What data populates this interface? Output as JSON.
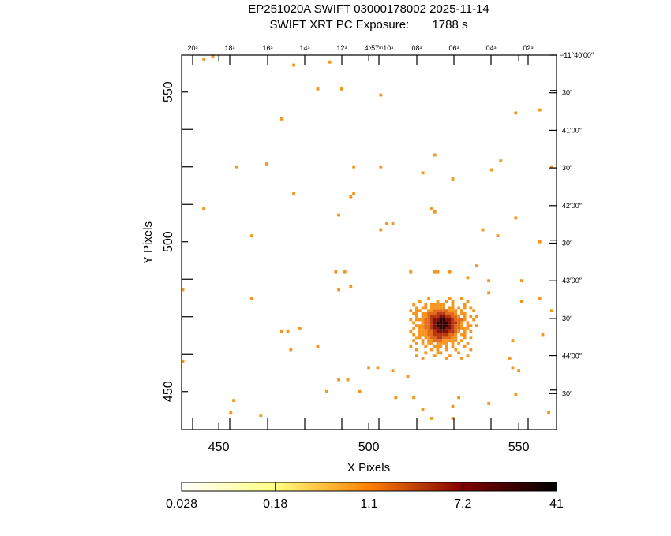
{
  "title": "EP251020A SWIFT 03000178002 2025-11-14",
  "subtitle": "SWIFT XRT PC Exposure:       1788 s",
  "chart_data": {
    "type": "heatmap",
    "xlabel": "X Pixels",
    "ylabel": "Y Pixels",
    "xlim": [
      437.6,
      562.6
    ],
    "ylim": [
      437.3,
      562.3
    ],
    "x_ticks": [
      450,
      500,
      550
    ],
    "y_ticks": [
      450,
      500,
      550
    ],
    "ra_tick_labels": [
      "20ˢ",
      "18ˢ",
      "16ˢ",
      "14ˢ",
      "12ˢ",
      "4ʰ57ᵐ10ˢ",
      "08ˢ",
      "06ˢ",
      "04ˢ",
      "02ˢ"
    ],
    "dec_tick_labels": [
      "−11°40′00″",
      "30″",
      "41′00″",
      "30″",
      "42′00″",
      "30″",
      "43′00″",
      "30″",
      "44′00″",
      "30″"
    ],
    "colorbar": {
      "scale": "log",
      "tick_labels": [
        "0.028",
        "0.18",
        "1.1",
        "7.2",
        "41"
      ],
      "colors": [
        "#ffffff",
        "#ffff80",
        "#ff8000",
        "#800000",
        "#000000"
      ]
    },
    "level_colors": [
      "#ffffff",
      "#f7941d",
      "#e2681a",
      "#b8360c",
      "#7e0e08",
      "#300000"
    ],
    "events": [
      [
        445,
        561
      ],
      [
        448,
        562
      ],
      [
        475,
        559
      ],
      [
        487,
        560
      ],
      [
        483,
        551
      ],
      [
        491,
        551
      ],
      [
        504,
        549
      ],
      [
        471,
        541
      ],
      [
        549,
        543
      ],
      [
        557,
        544
      ],
      [
        456,
        525
      ],
      [
        466,
        526
      ],
      [
        495,
        525
      ],
      [
        504,
        525
      ],
      [
        518,
        523
      ],
      [
        522,
        529
      ],
      [
        528,
        521
      ],
      [
        544,
        527
      ],
      [
        541,
        524
      ],
      [
        561,
        525
      ],
      [
        475,
        516
      ],
      [
        495,
        516
      ],
      [
        494,
        515
      ],
      [
        445,
        511
      ],
      [
        490,
        509
      ],
      [
        521,
        511
      ],
      [
        522,
        510
      ],
      [
        549,
        508
      ],
      [
        506,
        506
      ],
      [
        508,
        506
      ],
      [
        504,
        504
      ],
      [
        538,
        504
      ],
      [
        543,
        502
      ],
      [
        461,
        502
      ],
      [
        557,
        500
      ],
      [
        489,
        490
      ],
      [
        492,
        490
      ],
      [
        514,
        490
      ],
      [
        522,
        490
      ],
      [
        523,
        490
      ],
      [
        527,
        490
      ],
      [
        536,
        492
      ],
      [
        533,
        488
      ],
      [
        540,
        487
      ],
      [
        551,
        487
      ],
      [
        438,
        484
      ],
      [
        494,
        485
      ],
      [
        490,
        484
      ],
      [
        461,
        481
      ],
      [
        540,
        483
      ],
      [
        551,
        480
      ],
      [
        557,
        481
      ],
      [
        561,
        477
      ],
      [
        471,
        470
      ],
      [
        473,
        470
      ],
      [
        477,
        471
      ],
      [
        474,
        464
      ],
      [
        483,
        465
      ],
      [
        558,
        469
      ],
      [
        548,
        467
      ],
      [
        438,
        460
      ],
      [
        547,
        461
      ],
      [
        548,
        458
      ],
      [
        490,
        454
      ],
      [
        486,
        450
      ],
      [
        493,
        454
      ],
      [
        497,
        450
      ],
      [
        500,
        458
      ],
      [
        503,
        458
      ],
      [
        508,
        457
      ],
      [
        509,
        448
      ],
      [
        513,
        455
      ],
      [
        515,
        448
      ],
      [
        518,
        444
      ],
      [
        521,
        441
      ],
      [
        528,
        445
      ],
      [
        528,
        441
      ],
      [
        530,
        448
      ],
      [
        540,
        446
      ],
      [
        549,
        449
      ],
      [
        550,
        457
      ],
      [
        560,
        443
      ],
      [
        455,
        447
      ],
      [
        454,
        443
      ],
      [
        464,
        442
      ]
    ],
    "source_grid": {
      "origin_x": 514,
      "origin_y": 481,
      "rows": [
        "......1......1...1.....",
        "...1.....1..1.1....1...",
        ".1...1.11111..1...1....",
        "..1.11.11111.11.1.1.1..",
        "1.11..1122222111.1...1.",
        ".11.112223332221.11....",
        "..1.1123334433221.1.1.1",
        "1.11122344554432221..1.",
        ".1..12234555543321.1...",
        "..1112234555543221.11.1",
        ".1.11223445544322111...",
        "1..11122344443321.1.1..",
        ".1.1112233333221.11....",
        "..11.11223322211..1.1..",
        ".1..1.1122211111.1.....",
        "..1.1.11.1111.1.1..1...",
        "1....1..111.1.1...1....",
        "..1....1.1..1..1....1..",
        ".....1...11.....1......",
        "..1.....1....1.....1...",
        "....1.......1....1....."
      ]
    }
  }
}
